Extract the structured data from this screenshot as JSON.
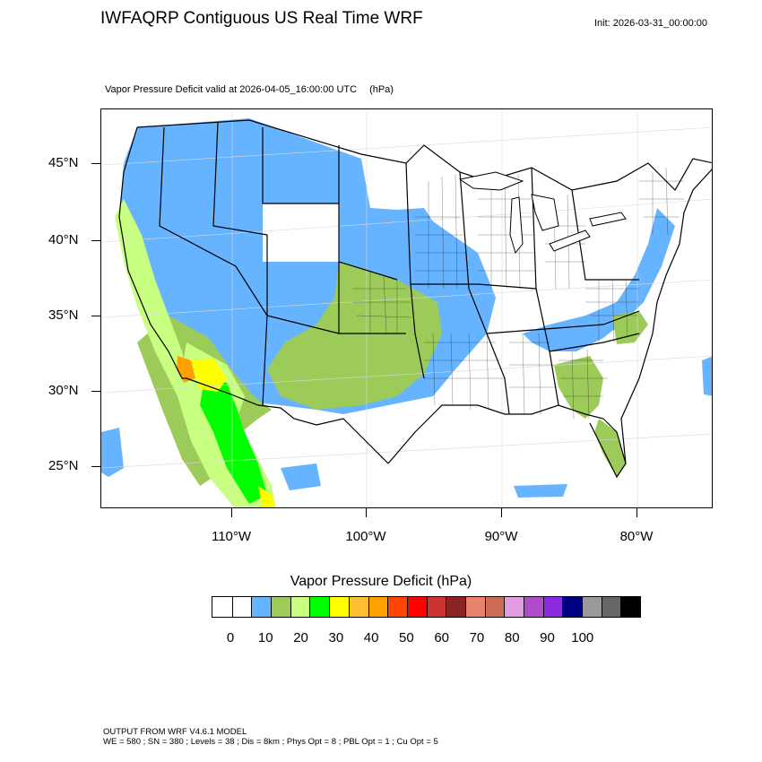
{
  "title": "IWFAQRP Contiguous US Real Time WRF",
  "init_label": "Init: 2026-03-31_00:00:00",
  "field_title": "Vapor Pressure Deficit valid at 2026-04-05_16:00:00 UTC",
  "field_units": "(hPa)",
  "latitude_labels": [
    "45°N",
    "40°N",
    "35°N",
    "30°N",
    "25°N"
  ],
  "longitude_labels": [
    "110°W",
    "100°W",
    "90°W",
    "80°W"
  ],
  "colorbar": {
    "title": "Vapor Pressure Deficit  (hPa)",
    "colors": [
      "#ffffff",
      "#ffffff",
      "#66b3ff",
      "#9dcb5a",
      "#c8ff80",
      "#00ff00",
      "#ffff00",
      "#ffbf33",
      "#ffa200",
      "#ff4500",
      "#ff0000",
      "#cc3333",
      "#8b2323",
      "#e8826e",
      "#cc6e57",
      "#e39ee3",
      "#ad4dcc",
      "#8a2be2",
      "#000080",
      "#999999",
      "#666666",
      "#000000"
    ],
    "tick_labels": [
      "0",
      "10",
      "20",
      "30",
      "40",
      "50",
      "60",
      "70",
      "80",
      "90",
      "100"
    ]
  },
  "footer": {
    "line1": "OUTPUT FROM WRF V4.6.1 MODEL",
    "line2": "WE = 580 ; SN = 380 ; Levels = 38 ; Dis = 8km ; Phys Opt = 8 ; PBL Opt = 1 ; Cu Opt = 5"
  },
  "map_colors": {
    "blue": "#66b3ff",
    "olive": "#9dcb5a",
    "lightgreen": "#c8ff80",
    "green": "#00ff00",
    "yellow": "#ffff00",
    "orange": "#ffa200"
  }
}
